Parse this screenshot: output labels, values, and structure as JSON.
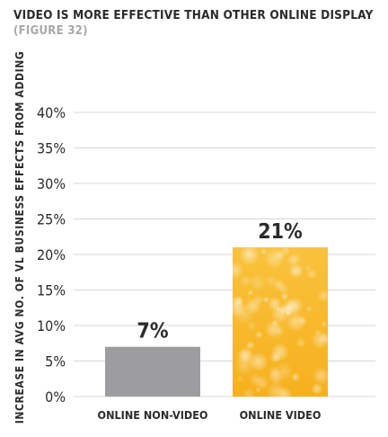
{
  "header": {
    "title": "VIDEO IS MORE EFFECTIVE THAN OTHER ONLINE DISPLAY",
    "subtitle": "(FIGURE 32)"
  },
  "colors": {
    "non_video_bar": "#9d9d9f",
    "video_bar": "#f8b82a",
    "gridline": "#d7d7d7",
    "text": "#2b2b2b"
  },
  "chart_data": {
    "type": "bar",
    "title": "VIDEO IS MORE EFFECTIVE THAN OTHER ONLINE DISPLAY",
    "subtitle": "(FIGURE 32)",
    "categories": [
      "ONLINE NON-VIDEO",
      "ONLINE VIDEO"
    ],
    "values": [
      7,
      21
    ],
    "data_labels": [
      "7%",
      "21%"
    ],
    "xlabel": "",
    "ylabel": "INCREASE IN AVG NO. OF VL BUSINESS EFFECTS FROM ADDING",
    "ylim": [
      0,
      40
    ],
    "yticks": [
      0,
      5,
      10,
      15,
      20,
      25,
      30,
      35,
      40
    ],
    "ytick_labels": [
      "0%",
      "5%",
      "10%",
      "15%",
      "20%",
      "25%",
      "30%",
      "35%",
      "40%"
    ],
    "grid": true,
    "legend": "none"
  }
}
